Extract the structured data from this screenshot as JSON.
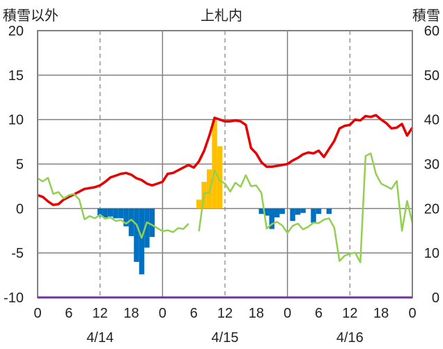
{
  "chart_data": {
    "type": "bar+line",
    "title": "上札内",
    "left_axis_label": "積雪以外",
    "right_axis_label": "積雪",
    "left_ylim": [
      -10,
      20
    ],
    "left_yticks": [
      "20",
      "15",
      "10",
      "5",
      "0",
      "-5",
      "-10"
    ],
    "right_ylim": [
      0,
      60
    ],
    "right_yticks": [
      "60",
      "50",
      "40",
      "30",
      "20",
      "10",
      "0"
    ],
    "x_range_hours": [
      0,
      72
    ],
    "x_tick_hours": [
      0,
      6,
      12,
      18,
      24,
      30,
      36,
      42,
      48,
      54,
      60,
      66,
      72
    ],
    "x_tick_labels": [
      "0",
      "6",
      "12",
      "18",
      "0",
      "6",
      "12",
      "18",
      "0",
      "6",
      "12",
      "18",
      "0"
    ],
    "date_labels": [
      "4/14",
      "4/15",
      "4/16"
    ],
    "date_label_hours": [
      12,
      36,
      60
    ],
    "day_boundary_hours": [
      24,
      48
    ],
    "dashed_hours": [
      12,
      36,
      60
    ],
    "grid": true,
    "colors": {
      "temperature": "#e60000",
      "snow_depth": "#92d050",
      "precip_positive": "#ffc000",
      "precip_negative": "#0070c0",
      "baseline": "#7030a0"
    },
    "series": [
      {
        "kind": "line",
        "axis": "left",
        "color": "#e60000",
        "points": [
          [
            0,
            1.5
          ],
          [
            1,
            1.3
          ],
          [
            2,
            0.8
          ],
          [
            3,
            0.4
          ],
          [
            4,
            0.5
          ],
          [
            5,
            1.0
          ],
          [
            6,
            1.3
          ],
          [
            7,
            1.6
          ],
          [
            8,
            1.9
          ],
          [
            9,
            2.2
          ],
          [
            10,
            2.3
          ],
          [
            11,
            2.4
          ],
          [
            12,
            2.6
          ],
          [
            13,
            3.0
          ],
          [
            14,
            3.5
          ],
          [
            15,
            3.7
          ],
          [
            16,
            3.9
          ],
          [
            17,
            4.0
          ],
          [
            18,
            3.8
          ],
          [
            19,
            3.4
          ],
          [
            20,
            3.2
          ],
          [
            21,
            2.8
          ],
          [
            22,
            2.6
          ],
          [
            23,
            2.8
          ],
          [
            24,
            3.0
          ],
          [
            25,
            3.9
          ],
          [
            26,
            4.0
          ],
          [
            27,
            4.3
          ],
          [
            28,
            4.6
          ],
          [
            29,
            4.9
          ],
          [
            30,
            4.6
          ],
          [
            31,
            5.3
          ],
          [
            32,
            6.5
          ],
          [
            33,
            8.2
          ],
          [
            34,
            10.2
          ],
          [
            35,
            10.0
          ],
          [
            36,
            9.8
          ],
          [
            37,
            9.8
          ],
          [
            38,
            9.9
          ],
          [
            39,
            9.8
          ],
          [
            40,
            9.4
          ],
          [
            41,
            6.8
          ],
          [
            42,
            6.2
          ],
          [
            43,
            5.2
          ],
          [
            44,
            4.7
          ],
          [
            45,
            4.7
          ],
          [
            46,
            4.8
          ],
          [
            47,
            4.9
          ],
          [
            48,
            5.0
          ],
          [
            49,
            5.4
          ],
          [
            50,
            5.7
          ],
          [
            51,
            6.1
          ],
          [
            52,
            6.3
          ],
          [
            53,
            6.2
          ],
          [
            54,
            6.5
          ],
          [
            55,
            5.8
          ],
          [
            56,
            6.7
          ],
          [
            57,
            7.6
          ],
          [
            58,
            9.0
          ],
          [
            59,
            9.3
          ],
          [
            60,
            9.4
          ],
          [
            61,
            10.0
          ],
          [
            62,
            9.9
          ],
          [
            63,
            10.4
          ],
          [
            64,
            10.3
          ],
          [
            65,
            10.5
          ],
          [
            66,
            10.0
          ],
          [
            67,
            9.6
          ],
          [
            68,
            9.0
          ],
          [
            69,
            9.1
          ],
          [
            70,
            9.5
          ],
          [
            71,
            8.2
          ],
          [
            72,
            9.1
          ]
        ]
      },
      {
        "kind": "line",
        "axis": "right",
        "color": "#92d050",
        "segments": [
          [
            [
              0,
              26.8
            ],
            [
              1,
              26.1
            ],
            [
              2,
              26.9
            ],
            [
              3,
              23.3
            ],
            [
              4,
              23.7
            ],
            [
              5,
              22.3
            ],
            [
              6,
              23.0
            ],
            [
              7,
              23.3
            ],
            [
              8,
              22.0
            ],
            [
              9,
              17.6
            ],
            [
              10,
              18.3
            ],
            [
              11,
              17.8
            ],
            [
              12,
              18.6
            ],
            [
              13,
              17.7
            ],
            [
              14,
              18.0
            ],
            [
              15,
              17.2
            ],
            [
              16,
              17.4
            ],
            [
              17,
              16.6
            ],
            [
              18,
              17.5
            ],
            [
              19,
              16.4
            ],
            [
              20,
              13.4
            ],
            [
              21,
              16.9
            ],
            [
              22,
              16.3
            ],
            [
              23,
              15.6
            ],
            [
              24,
              14.9
            ],
            [
              25,
              15.1
            ],
            [
              26,
              14.7
            ],
            [
              27,
              15.6
            ],
            [
              28,
              15.4
            ],
            [
              29,
              16.6
            ]
          ],
          [
            [
              31,
              14.9
            ],
            [
              32,
              23.4
            ],
            [
              33,
              23.6
            ],
            [
              34,
              28.6
            ],
            [
              35,
              26.3
            ],
            [
              36,
              25.6
            ],
            [
              37,
              23.8
            ],
            [
              38,
              25.8
            ],
            [
              39,
              24.9
            ],
            [
              40,
              27.5
            ],
            [
              41,
              25.0
            ],
            [
              42,
              25.2
            ],
            [
              43,
              23.5
            ],
            [
              44,
              15.5
            ],
            [
              45,
              16.5
            ],
            [
              46,
              17.0
            ],
            [
              47,
              16.2
            ],
            [
              48,
              14.5
            ],
            [
              49,
              16.1
            ],
            [
              50,
              16.6
            ],
            [
              51,
              15.3
            ],
            [
              52,
              15.9
            ],
            [
              53,
              16.8
            ],
            [
              54,
              16.7
            ],
            [
              55,
              17.5
            ],
            [
              56,
              17.8
            ],
            [
              57,
              15.7
            ],
            [
              58,
              8.2
            ],
            [
              59,
              9.4
            ],
            [
              60,
              9.8
            ],
            [
              61,
              10.1
            ],
            [
              62,
              7.9
            ],
            [
              63,
              31.8
            ],
            [
              64,
              32.4
            ],
            [
              65,
              27.8
            ],
            [
              66,
              25.6
            ],
            [
              67,
              25.0
            ],
            [
              68,
              24.4
            ],
            [
              69,
              26.2
            ],
            [
              70,
              15.0
            ],
            [
              71,
              21.7
            ],
            [
              72,
              16.8
            ]
          ]
        ]
      },
      {
        "kind": "bar",
        "axis": "left",
        "bars": [
          [
            12,
            -0.9
          ],
          [
            13,
            -1.0
          ],
          [
            14,
            -0.9
          ],
          [
            15,
            -1.1
          ],
          [
            16,
            -1.1
          ],
          [
            17,
            -2.0
          ],
          [
            18,
            -3.1
          ],
          [
            19,
            -6.0
          ],
          [
            20,
            -7.4
          ],
          [
            21,
            -4.4
          ],
          [
            22,
            -3.2
          ],
          [
            31,
            1.0
          ],
          [
            32,
            3.0
          ],
          [
            33,
            4.4
          ],
          [
            34,
            9.9
          ],
          [
            35,
            7.0
          ],
          [
            43,
            -0.6
          ],
          [
            44,
            -0.8
          ],
          [
            45,
            -2.3
          ],
          [
            46,
            -1.0
          ],
          [
            47,
            -0.6
          ],
          [
            49,
            -1.4
          ],
          [
            50,
            -0.7
          ],
          [
            51,
            -0.5
          ],
          [
            53,
            -1.6
          ],
          [
            54,
            -0.6
          ],
          [
            56,
            -0.6
          ]
        ]
      }
    ]
  }
}
